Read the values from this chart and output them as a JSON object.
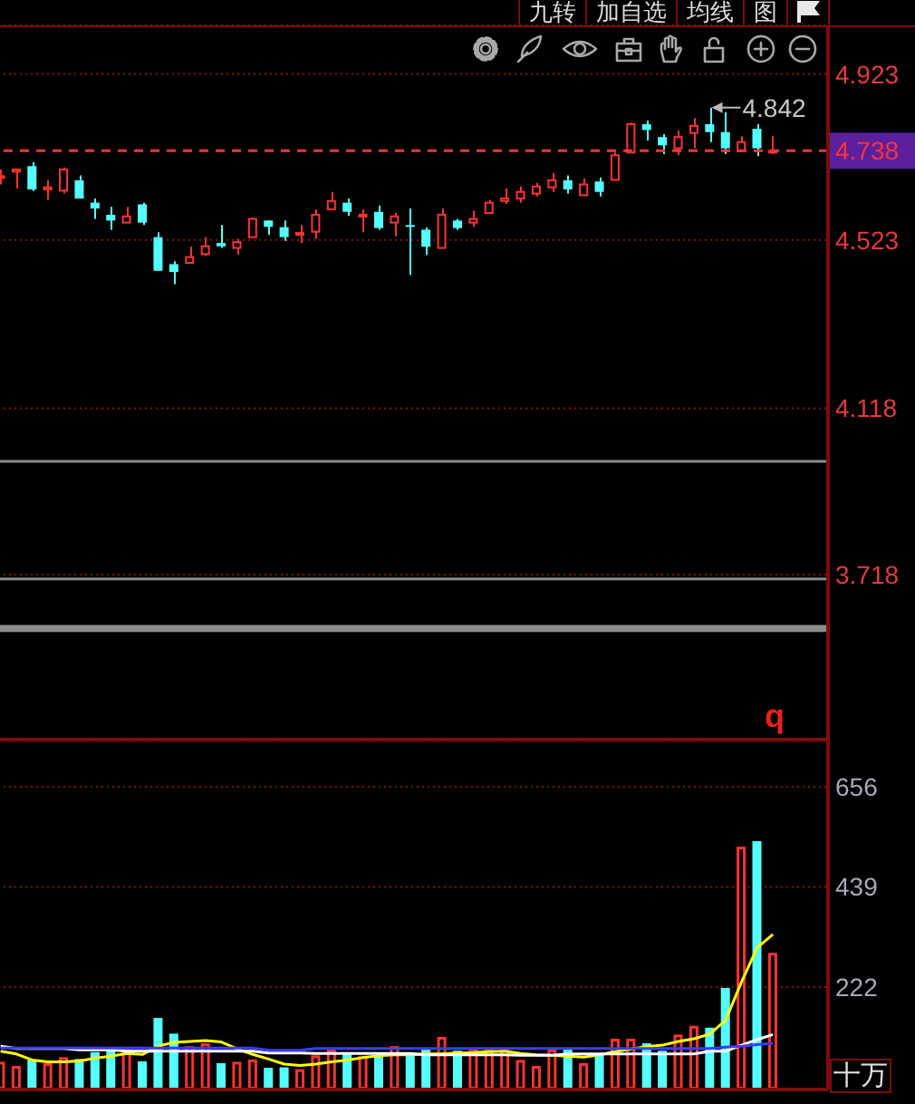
{
  "chart_data": [
    {
      "type": "candlestick",
      "categories": [
        null,
        null,
        null,
        null,
        null,
        null,
        null,
        null,
        null,
        null,
        null,
        null,
        null,
        null,
        null,
        null,
        null,
        null,
        null,
        null,
        null,
        null,
        null,
        null,
        null,
        null,
        null,
        null,
        null,
        null,
        null,
        null,
        null,
        null,
        null,
        null,
        null,
        null,
        null,
        null,
        null,
        null,
        null,
        null,
        null,
        null,
        null,
        null,
        null,
        null,
        null,
        null,
        null
      ],
      "ohlc": [
        [
          4.674,
          4.693,
          4.657,
          4.677
        ],
        [
          4.688,
          4.693,
          4.647,
          4.693
        ],
        [
          4.701,
          4.711,
          4.641,
          4.645
        ],
        [
          4.645,
          4.667,
          4.62,
          4.65
        ],
        [
          4.642,
          4.698,
          4.635,
          4.693
        ],
        [
          4.667,
          4.679,
          4.623,
          4.623
        ],
        [
          4.613,
          4.623,
          4.574,
          4.599
        ],
        [
          4.584,
          4.603,
          4.548,
          4.57
        ],
        [
          4.565,
          4.603,
          4.565,
          4.58
        ],
        [
          4.609,
          4.613,
          4.559,
          4.565
        ],
        [
          4.53,
          4.542,
          4.449,
          4.449
        ],
        [
          4.465,
          4.472,
          4.417,
          4.446
        ],
        [
          4.468,
          4.507,
          4.466,
          4.482
        ],
        [
          4.489,
          4.53,
          4.485,
          4.508
        ],
        [
          4.516,
          4.559,
          4.504,
          4.508
        ],
        [
          4.504,
          4.526,
          4.487,
          4.518
        ],
        [
          4.53,
          4.577,
          4.529,
          4.574
        ],
        [
          4.57,
          4.57,
          4.536,
          4.555
        ],
        [
          4.554,
          4.57,
          4.521,
          4.53
        ],
        [
          4.536,
          4.559,
          4.516,
          4.54
        ],
        [
          4.543,
          4.597,
          4.526,
          4.584
        ],
        [
          4.597,
          4.639,
          4.596,
          4.617
        ],
        [
          4.613,
          4.623,
          4.581,
          4.591
        ],
        [
          4.581,
          4.597,
          4.542,
          4.584
        ],
        [
          4.591,
          4.606,
          4.548,
          4.552
        ],
        [
          4.565,
          4.588,
          4.532,
          4.58
        ],
        [
          4.559,
          4.599,
          4.439,
          4.556
        ],
        [
          4.548,
          4.553,
          4.487,
          4.507
        ],
        [
          4.504,
          4.599,
          4.504,
          4.584
        ],
        [
          4.57,
          4.574,
          4.548,
          4.552
        ],
        [
          4.565,
          4.594,
          4.555,
          4.574
        ],
        [
          4.588,
          4.62,
          4.588,
          4.613
        ],
        [
          4.617,
          4.647,
          4.61,
          4.623
        ],
        [
          4.623,
          4.652,
          4.613,
          4.639
        ],
        [
          4.635,
          4.661,
          4.628,
          4.652
        ],
        [
          4.65,
          4.684,
          4.639,
          4.667
        ],
        [
          4.667,
          4.679,
          4.635,
          4.645
        ],
        [
          4.631,
          4.671,
          4.631,
          4.657
        ],
        [
          4.664,
          4.674,
          4.628,
          4.639
        ],
        [
          4.668,
          4.734,
          4.667,
          4.727
        ],
        [
          4.734,
          4.806,
          4.733,
          4.802
        ],
        [
          4.802,
          4.811,
          4.763,
          4.788
        ],
        [
          4.771,
          4.778,
          4.73,
          4.751
        ],
        [
          4.744,
          4.787,
          4.728,
          4.771
        ],
        [
          4.781,
          4.817,
          4.744,
          4.798
        ],
        [
          4.802,
          4.842,
          4.759,
          4.783
        ],
        [
          4.783,
          4.831,
          4.73,
          4.744
        ],
        [
          4.737,
          4.773,
          4.737,
          4.759
        ],
        [
          4.791,
          4.802,
          4.725,
          4.744
        ],
        [
          4.735,
          4.773,
          4.73,
          4.738
        ],
        null,
        null,
        null
      ],
      "colors": [
        "#ff3232",
        "#ff3232",
        "#54ffff",
        "#ff3232",
        "#ff3232",
        "#54ffff",
        "#54ffff",
        "#54ffff",
        "#ff3232",
        "#54ffff",
        "#54ffff",
        "#54ffff",
        "#ff3232",
        "#ff3232",
        "#54ffff",
        "#ff3232",
        "#ff3232",
        "#54ffff",
        "#54ffff",
        "#ff3232",
        "#ff3232",
        "#ff3232",
        "#54ffff",
        "#ff3232",
        "#54ffff",
        "#ff3232",
        "#54ffff",
        "#54ffff",
        "#ff3232",
        "#54ffff",
        "#ff3232",
        "#ff3232",
        "#ff3232",
        "#ff3232",
        "#ff3232",
        "#ff3232",
        "#54ffff",
        "#ff3232",
        "#54ffff",
        "#ff3232",
        "#ff3232",
        "#54ffff",
        "#54ffff",
        "#ff3232",
        "#ff3232",
        "#54ffff",
        "#54ffff",
        "#ff3232",
        "#54ffff",
        "#ff3232",
        null,
        null,
        null
      ],
      "ylim": [
        3.32,
        5.04
      ],
      "yticks": [
        4.923,
        4.523,
        4.118,
        3.718
      ],
      "grid": "y",
      "tick_labels": "y",
      "ref_lines": [
        {
          "axis": "y",
          "value": 4.738,
          "label": "4.738",
          "color": "#ff3232",
          "line_style": "dashed"
        },
        {
          "axis": "y",
          "value": 3.99,
          "color": "#8c8c8c"
        },
        {
          "axis": "y",
          "value": 3.707,
          "color": "#8c8c8c"
        }
      ],
      "bands": [
        {
          "axis": "y",
          "from": 3.579,
          "to": 3.596,
          "color": "#8c8c8c"
        }
      ],
      "annotations": [
        "九转",
        "加自选",
        "均线",
        "图",
        "q",
        "4.842"
      ]
    },
    {
      "type": "bar",
      "categories": [
        null,
        null,
        null,
        null,
        null,
        null,
        null,
        null,
        null,
        null,
        null,
        null,
        null,
        null,
        null,
        null,
        null,
        null,
        null,
        null,
        null,
        null,
        null,
        null,
        null,
        null,
        null,
        null,
        null,
        null,
        null,
        null,
        null,
        null,
        null,
        null,
        null,
        null,
        null,
        null,
        null,
        null,
        null,
        null,
        null,
        null,
        null,
        null,
        null,
        null,
        null,
        null,
        null
      ],
      "series": [
        {
          "values": [
            60,
            51,
            64,
            57,
            70,
            66,
            81,
            87,
            87,
            61,
            155,
            121,
            94,
            100,
            57,
            60,
            65,
            47,
            48,
            44,
            74,
            86,
            77,
            73,
            74,
            94,
            74,
            87,
            114,
            84,
            87,
            87,
            87,
            64,
            51,
            87,
            87,
            57,
            78,
            110,
            110,
            100,
            84,
            119,
            138,
            134,
            220,
            526,
            538,
            296,
            null,
            null,
            null
          ],
          "colors": [
            "#ff3232",
            "#ff3232",
            "#54ffff",
            "#ff3232",
            "#ff3232",
            "#54ffff",
            "#54ffff",
            "#54ffff",
            "#ff3232",
            "#54ffff",
            "#54ffff",
            "#54ffff",
            "#ff3232",
            "#ff3232",
            "#54ffff",
            "#ff3232",
            "#ff3232",
            "#54ffff",
            "#54ffff",
            "#ff3232",
            "#ff3232",
            "#ff3232",
            "#54ffff",
            "#ff3232",
            "#54ffff",
            "#ff3232",
            "#54ffff",
            "#54ffff",
            "#ff3232",
            "#54ffff",
            "#ff3232",
            "#ff3232",
            "#ff3232",
            "#ff3232",
            "#ff3232",
            "#ff3232",
            "#54ffff",
            "#ff3232",
            "#54ffff",
            "#ff3232",
            "#ff3232",
            "#54ffff",
            "#54ffff",
            "#ff3232",
            "#ff3232",
            "#54ffff",
            "#54ffff",
            "#ff3232",
            "#54ffff",
            "#ff3232",
            null,
            null,
            null
          ]
        },
        {
          "type": "line",
          "color": "#ffff00",
          "values": [
            83,
            77,
            64,
            60,
            60,
            62,
            68,
            72,
            78,
            76,
            94,
            102,
            104,
            106,
            103,
            88,
            76,
            66,
            55,
            52,
            55,
            60,
            64,
            69,
            73,
            75,
            75,
            77,
            77,
            79,
            80,
            82,
            83,
            78,
            75,
            74,
            72,
            70,
            75,
            82,
            88,
            93,
            96,
            104,
            110,
            120,
            150,
            232,
            307,
            336,
            null,
            null,
            null
          ]
        },
        {
          "type": "line",
          "color": "#ffffff",
          "values": [
            94,
            89,
            89,
            89,
            89,
            86,
            86,
            86,
            83,
            83,
            83,
            83,
            83,
            83,
            83,
            83,
            83,
            79,
            79,
            79,
            78,
            78,
            78,
            78,
            78,
            78,
            78,
            75,
            75,
            75,
            75,
            75,
            75,
            74,
            74,
            74,
            77,
            77,
            77,
            77,
            77,
            77,
            77,
            77,
            77,
            83,
            83,
            96,
            108,
            119,
            null,
            null,
            null
          ]
        },
        {
          "type": "line",
          "color": "#3c3cff",
          "values": [
            90,
            90,
            90,
            90,
            90,
            90,
            90,
            90,
            90,
            90,
            90,
            90,
            90,
            90,
            90,
            90,
            90,
            85,
            85,
            85,
            89,
            89,
            89,
            89,
            89,
            89,
            89,
            89,
            89,
            89,
            89,
            89,
            89,
            89,
            89,
            89,
            89,
            89,
            89,
            89,
            89,
            89,
            89,
            89,
            89,
            89,
            92,
            94,
            97,
            100,
            null,
            null,
            null
          ]
        }
      ],
      "ylim": [
        0,
        758
      ],
      "yticks": [
        656,
        439,
        222
      ],
      "ylabel": "十万",
      "grid": "y",
      "tick_labels": "y"
    }
  ]
}
